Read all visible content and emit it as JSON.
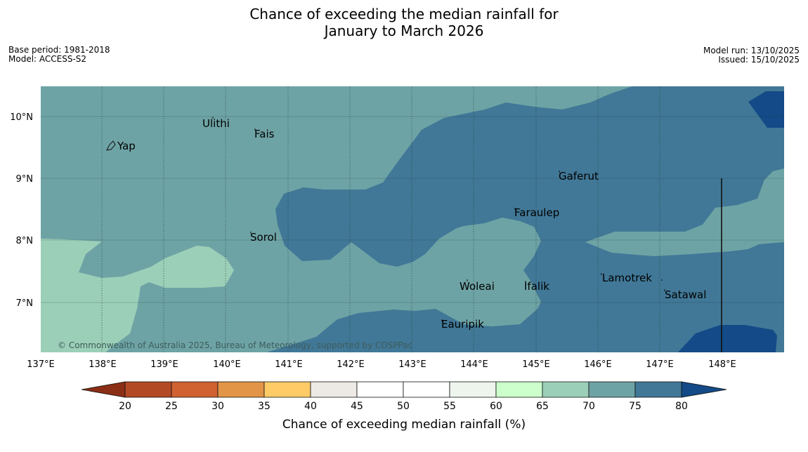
{
  "title": {
    "line1": "Chance of exceeding the median rainfall for",
    "line2": "January to March 2026"
  },
  "meta_left": {
    "base_period": "Base period: 1981-2018",
    "model": "Model: ACCESS-S2"
  },
  "meta_right": {
    "model_run": "Model run: 13/10/2025",
    "issued": "Issued: 15/10/2025"
  },
  "map": {
    "lon_labels": [
      "137°E",
      "138°E",
      "139°E",
      "140°E",
      "141°E",
      "142°E",
      "143°E",
      "144°E",
      "145°E",
      "146°E",
      "147°E",
      "148°E"
    ],
    "lat_labels": [
      "10°N",
      "9°N",
      "8°N",
      "7°N"
    ],
    "places": [
      "Ulithi",
      "Fais",
      "Yap",
      "Gaferut",
      "Faraulep",
      "Sorol",
      "Woleai",
      "Ifalik",
      "Lamotrek",
      "Satawal",
      "Eauripik"
    ],
    "copyright": "© Commonwealth of Australia 2025, Bureau of Meteorology, supported by COSPPac"
  },
  "legend": {
    "ticks": [
      "20",
      "25",
      "30",
      "35",
      "40",
      "45",
      "50",
      "55",
      "60",
      "65",
      "70",
      "75",
      "80"
    ],
    "label": "Chance of exceeding median rainfall (%)"
  },
  "colors": {
    "below_20": "#8b2e16",
    "c20_25": "#b34a26",
    "c25_30": "#cf6230",
    "c30_35": "#e29447",
    "c35_40": "#fecb67",
    "c40_45": "#ede9e4",
    "c45_55": "#ffffff",
    "c55_60": "#edf5ec",
    "c60_65": "#ccffcc",
    "c65_70": "#9ccfb8",
    "c70_75": "#6ea3a5",
    "c75_80": "#417897",
    "above_80": "#134a87"
  }
}
